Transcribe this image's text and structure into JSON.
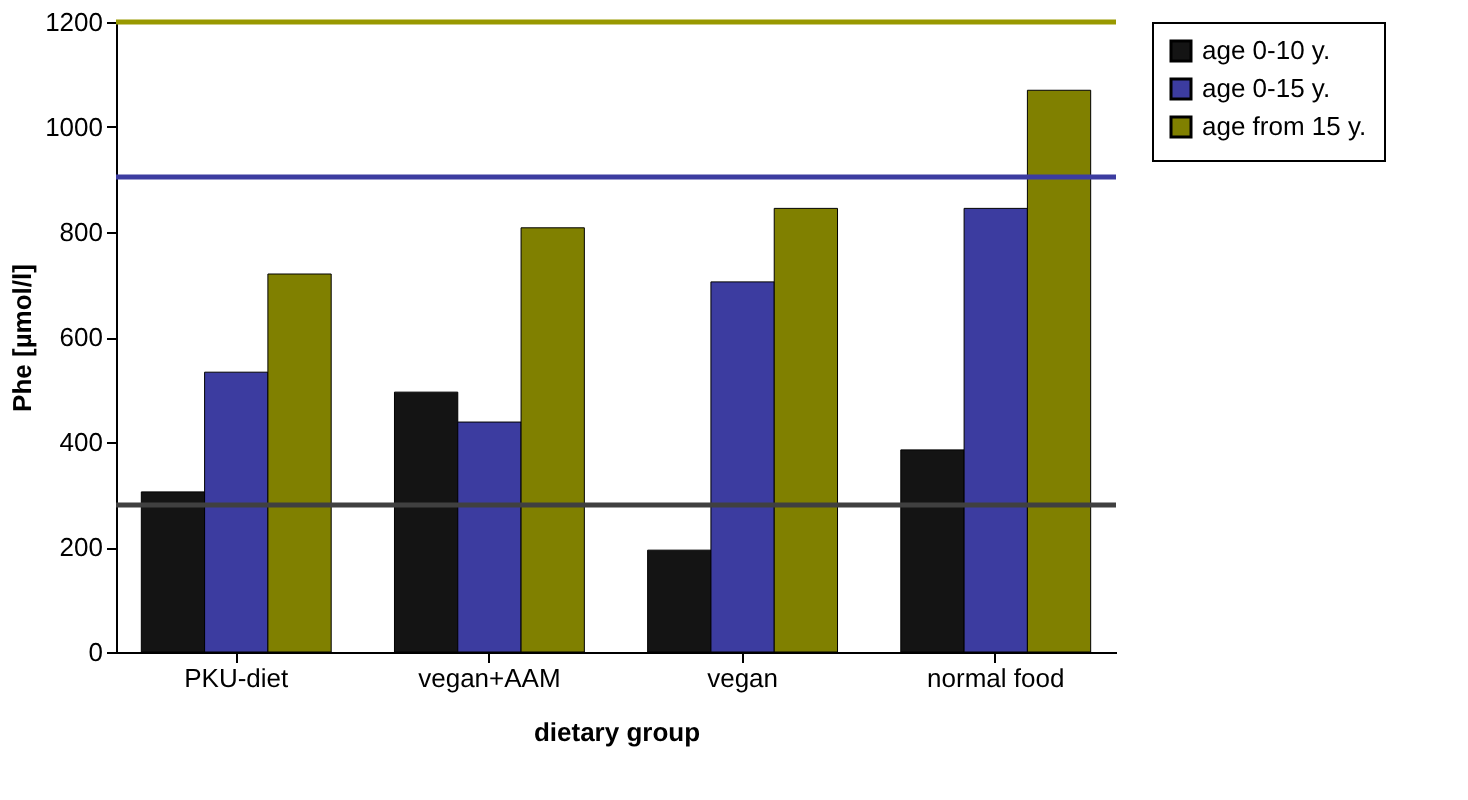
{
  "chart_data": {
    "type": "bar",
    "xlabel": "dietary group",
    "ylabel": "Phe [µmol/l]",
    "categories": [
      "PKU-diet",
      "vegan+AAM",
      "vegan",
      "normal food"
    ],
    "series": [
      {
        "name": "age 0-10 y.",
        "color": "#141414",
        "values": [
          305,
          495,
          194,
          385
        ]
      },
      {
        "name": "age 0-15 y.",
        "color": "#3c3ca0",
        "values": [
          533,
          438,
          705,
          845
        ]
      },
      {
        "name": "age from 15 y.",
        "color": "#808000",
        "values": [
          720,
          808,
          845,
          1070
        ]
      }
    ],
    "ylim": [
      0,
      1200
    ],
    "yticks": [
      0,
      200,
      400,
      600,
      800,
      1000,
      1200
    ],
    "ref_lines": [
      {
        "axis": "y",
        "value": 280,
        "color": "#404040"
      },
      {
        "axis": "y",
        "value": 905,
        "color": "#3c3ca0"
      },
      {
        "axis": "y",
        "value": 1200,
        "color": "#999900"
      }
    ],
    "grid": false,
    "legend": "right"
  }
}
